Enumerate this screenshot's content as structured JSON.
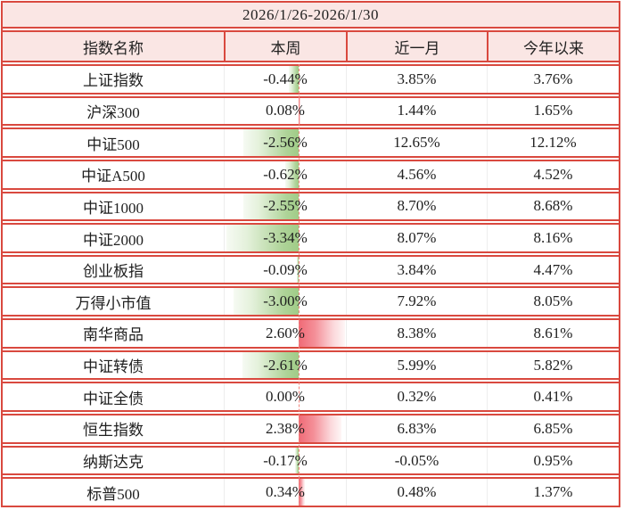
{
  "table": {
    "date_range": "2026/1/26-2026/1/30",
    "columns": [
      "指数名称",
      "本周",
      "近一月",
      "今年以来"
    ]
  },
  "colors": {
    "grid_red": "#d9493f",
    "header_pink": "#fae6e4",
    "cell_divider_gray": "#ededed",
    "negative_bar_green": "#a0cc87",
    "positive_bar_red": "#f06a76",
    "zero_axis_dashed_red": "#f2837b",
    "text": "#1f1f1f"
  },
  "chart_data": {
    "type": "table",
    "title": "2026/1/26-2026/1/30",
    "columns": [
      "指数名称",
      "本周",
      "近一月",
      "今年以来"
    ],
    "bar_column": "本周",
    "bar_axis": "zero axis shown as vertical dashed red line; negative values draw green gradient bars leftward, positive values draw red-pink gradient bars rightward",
    "rows": [
      {
        "name": "上证指数",
        "week": "-0.44%",
        "week_value": -0.44,
        "month": "3.85%",
        "ytd": "3.76%"
      },
      {
        "name": "沪深300",
        "week": "0.08%",
        "week_value": 0.08,
        "month": "1.44%",
        "ytd": "1.65%"
      },
      {
        "name": "中证500",
        "week": "-2.56%",
        "week_value": -2.56,
        "month": "12.65%",
        "ytd": "12.12%"
      },
      {
        "name": "中证A500",
        "week": "-0.62%",
        "week_value": -0.62,
        "month": "4.56%",
        "ytd": "4.52%"
      },
      {
        "name": "中证1000",
        "week": "-2.55%",
        "week_value": -2.55,
        "month": "8.70%",
        "ytd": "8.68%"
      },
      {
        "name": "中证2000",
        "week": "-3.34%",
        "week_value": -3.34,
        "month": "8.07%",
        "ytd": "8.16%"
      },
      {
        "name": "创业板指",
        "week": "-0.09%",
        "week_value": -0.09,
        "month": "3.84%",
        "ytd": "4.47%"
      },
      {
        "name": "万得小市值",
        "week": "-3.00%",
        "week_value": -3.0,
        "month": "7.92%",
        "ytd": "8.05%"
      },
      {
        "name": "南华商品",
        "week": "2.60%",
        "week_value": 2.6,
        "month": "8.38%",
        "ytd": "8.61%"
      },
      {
        "name": "中证转债",
        "week": "-2.61%",
        "week_value": -2.61,
        "month": "5.99%",
        "ytd": "5.82%"
      },
      {
        "name": "中证全债",
        "week": "0.00%",
        "week_value": 0.0,
        "month": "0.32%",
        "ytd": "0.41%"
      },
      {
        "name": "恒生指数",
        "week": "2.38%",
        "week_value": 2.38,
        "month": "6.83%",
        "ytd": "6.85%"
      },
      {
        "name": "纳斯达克",
        "week": "-0.17%",
        "week_value": -0.17,
        "month": "-0.05%",
        "ytd": "0.95%"
      },
      {
        "name": "标普500",
        "week": "0.34%",
        "week_value": 0.34,
        "month": "0.48%",
        "ytd": "1.37%"
      }
    ]
  }
}
